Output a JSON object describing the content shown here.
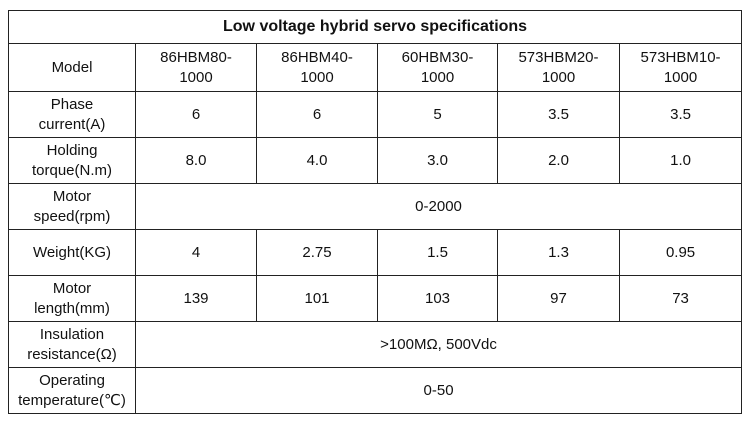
{
  "table": {
    "title": "Low voltage hybrid servo specifications",
    "header": {
      "label": "Model",
      "models": [
        "86HBM80-\n1000",
        "86HBM40-\n1000",
        "60HBM30-\n1000",
        "573HBM20-\n1000",
        "573HBM10-\n1000"
      ]
    },
    "rows": [
      {
        "label": "Phase\ncurrent(A)",
        "values": [
          "6",
          "6",
          "5",
          "3.5",
          "3.5"
        ]
      },
      {
        "label": "Holding\ntorque(N.m)",
        "values": [
          "8.0",
          "4.0",
          "3.0",
          "2.0",
          "1.0"
        ]
      },
      {
        "label": "Motor\nspeed(rpm)",
        "span_value": "0-2000"
      },
      {
        "label": "Weight(KG)",
        "values": [
          "4",
          "2.75",
          "1.5",
          "1.3",
          "0.95"
        ]
      },
      {
        "label": "Motor\nlength(mm)",
        "values": [
          "139",
          "101",
          "103",
          "97",
          "73"
        ]
      },
      {
        "label": "Insulation\nresistance(Ω)",
        "span_value": ">100MΩ, 500Vdc"
      },
      {
        "label": "Operating\ntemperature(℃)",
        "span_value": "0-50"
      }
    ]
  }
}
